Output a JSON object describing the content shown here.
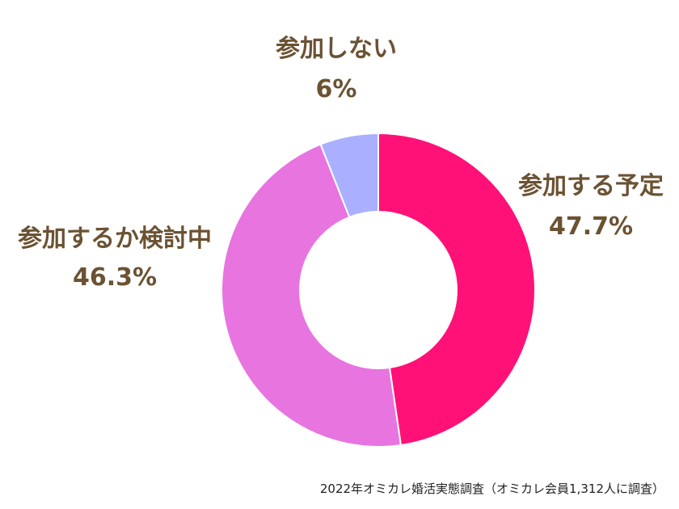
{
  "colors": {
    "label_text": "#6b5232",
    "slice_border": "#ffffff",
    "hole": "#ffffff"
  },
  "chart_data": {
    "type": "pie",
    "variant": "donut",
    "title": "",
    "start_angle_deg": 0,
    "direction": "clockwise",
    "slices": [
      {
        "label": "参加する予定",
        "value": 47.7,
        "value_text": "47.7%",
        "color": "#ff1177"
      },
      {
        "label": "参加するか検討中",
        "value": 46.3,
        "value_text": "46.3%",
        "color": "#e874e0"
      },
      {
        "label": "参加しない",
        "value": 6.0,
        "value_text": "6%",
        "color": "#aab0ff"
      }
    ]
  },
  "source_note": "2022年オミカレ婚活実態調査（オミカレ会員1,312人に調査）"
}
